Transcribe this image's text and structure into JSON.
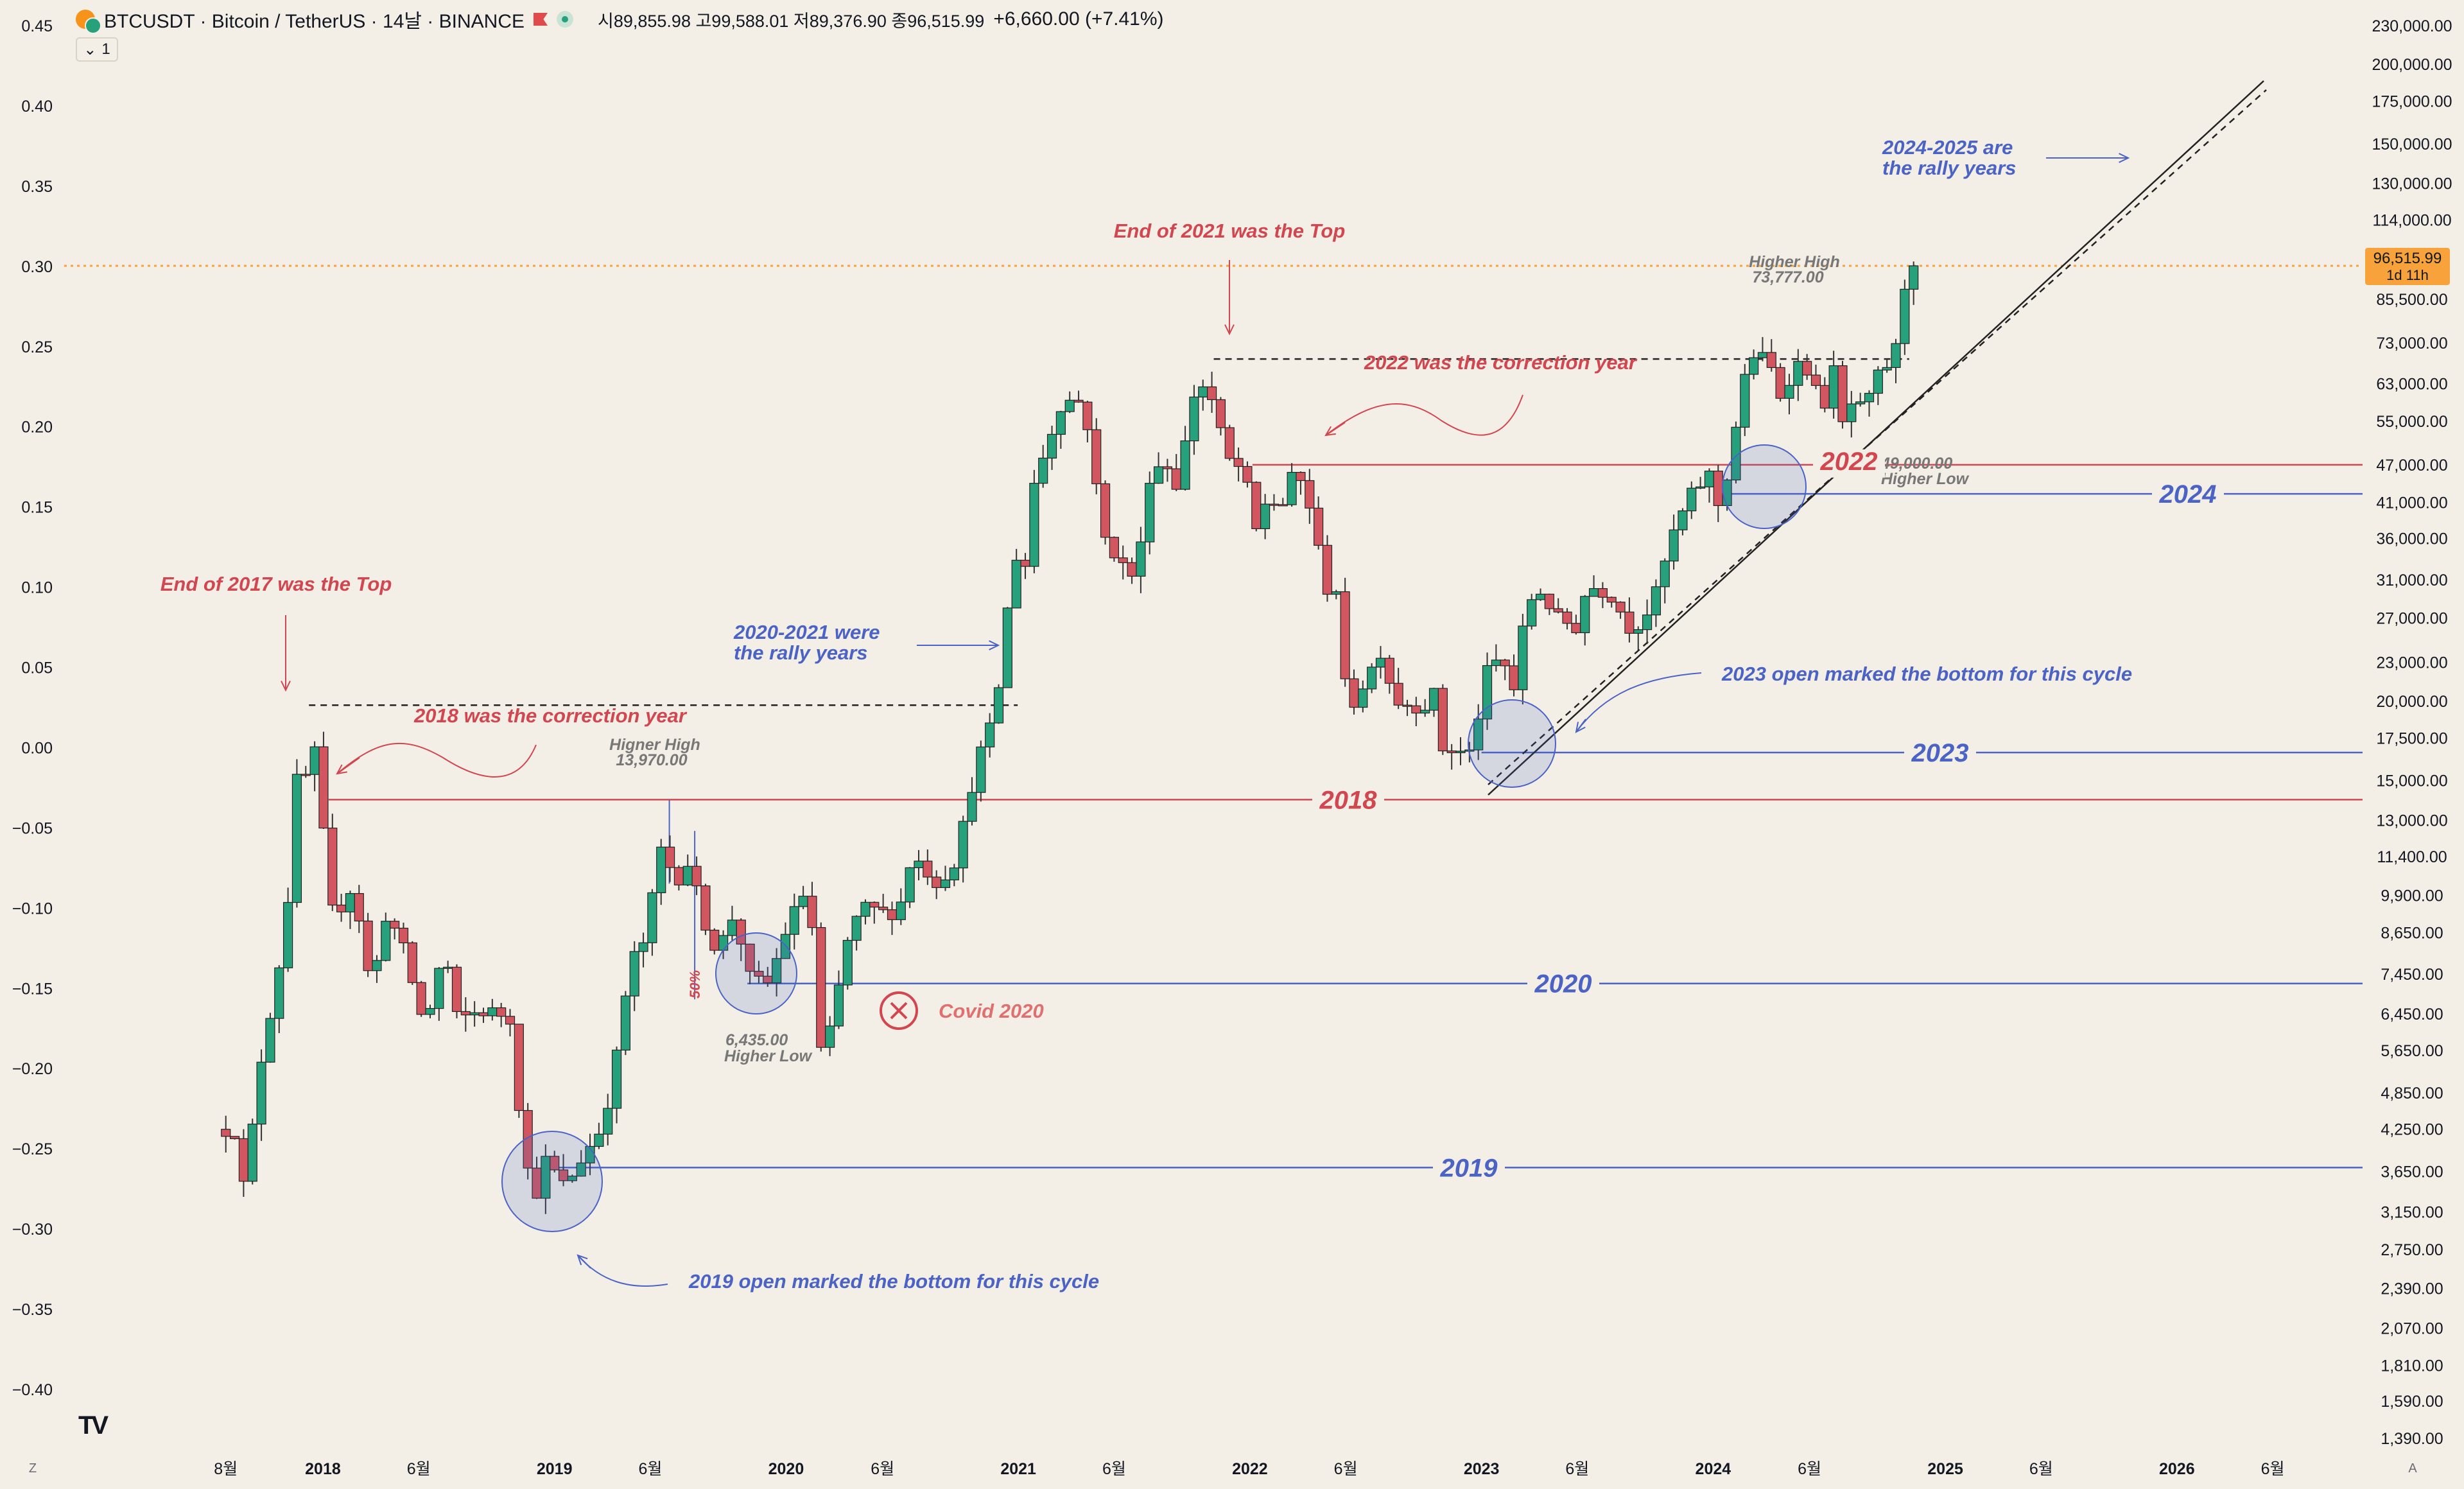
{
  "header": {
    "symbol": "BTCUSDT · Bitcoin / TetherUS · 14날 · BINANCE",
    "ohlc": "시89,855.98  고99,588.01  저89,376.90  종96,515.99",
    "change": "+6,660.00 (+7.41%)",
    "collapse_label": "1"
  },
  "price_badge": {
    "value": "96,515.99",
    "timer": "1d 11h",
    "color": "#f7a23b"
  },
  "left_axis_ticks": [
    "0.45",
    "0.40",
    "0.35",
    "0.30",
    "0.25",
    "0.20",
    "0.15",
    "0.10",
    "0.05",
    "0.00",
    "−0.05",
    "−0.10",
    "−0.15",
    "−0.20",
    "−0.25",
    "−0.30",
    "−0.35",
    "−0.40"
  ],
  "right_axis_ticks": [
    "230,000.00",
    "200,000.00",
    "175,000.00",
    "150,000.00",
    "130,000.00",
    "114,000.00",
    "85,500.00",
    "73,000.00",
    "63,000.00",
    "55,000.00",
    "47,000.00",
    "41,000.00",
    "36,000.00",
    "31,000.00",
    "27,000.00",
    "23,000.00",
    "20,000.00",
    "17,500.00",
    "15,000.00",
    "13,000.00",
    "11,400.00",
    "9,900.00",
    "8,650.00",
    "7,450.00",
    "6,450.00",
    "5,650.00",
    "4,850.00",
    "4,250.00",
    "3,650.00",
    "3,150.00",
    "2,750.00",
    "2,390.00",
    "2,070.00",
    "1,810.00",
    "1,590.00",
    "1,390.00"
  ],
  "time_axis_ticks": [
    "8월",
    "2018",
    "6월",
    "2019",
    "6월",
    "2020",
    "6월",
    "2021",
    "6월",
    "2022",
    "6월",
    "2023",
    "6월",
    "2024",
    "6월",
    "2025",
    "6월",
    "2026",
    "6월"
  ],
  "colors": {
    "up": "#26a17b",
    "down": "#d2565f",
    "red": "#d2464f",
    "blue": "#4a63c5",
    "grey": "#777777",
    "orange": "#f7a23b"
  },
  "annotations": {
    "top2017": "End of 2017 was the Top",
    "corr2018": "2018 was the correction year",
    "hh2019_title": "Higner High",
    "hh2019_value": "13,970.00",
    "pct50": "50%",
    "hl2019_value": "6,435.00",
    "hl2019_title": "Higher Low",
    "rally2020_line1": "2020-2021 were",
    "rally2020_line2": "the rally years",
    "covid": "Covid 2020",
    "bottom2019": "2019 open marked the bottom for this cycle",
    "top2021": "End of 2021 was the Top",
    "corr2022": "2022 was the correction year",
    "hh2024_title": "Higher High",
    "hh2024_value": "73,777.00",
    "hl2024_value": "49,000.00",
    "hl2024_title": "Higher Low",
    "rally2024_line1": "2024-2025 are",
    "rally2024_line2": "the rally years",
    "bottom2023": "2023 open marked the bottom for this cycle",
    "line2018": "2018",
    "line2019": "2019",
    "line2020": "2020",
    "line2022": "2022",
    "line2023": "2023",
    "line2024": "2024"
  },
  "chart_data": {
    "type": "candlestick",
    "interval": "14 days",
    "y_scale": "log",
    "ylim": [
      1390,
      230000
    ],
    "secondary_ylim": [
      -0.4,
      0.45
    ],
    "xlim": [
      "2017-07-10",
      "2026-08-31"
    ],
    "grid": false,
    "last_price": 96515.99,
    "ohlc_last": {
      "open": 89855.98,
      "high": 99588.01,
      "low": 89376.9,
      "close": 96515.99,
      "change": 6660.0,
      "change_pct": 7.41
    },
    "horizontal_levels": [
      {
        "label": "2018",
        "price": 14000
      },
      {
        "label": "2019",
        "price": 3700
      },
      {
        "label": "2020",
        "price": 7200
      },
      {
        "label": "2022",
        "price": 47000
      },
      {
        "label": "2023",
        "price": 16600
      },
      {
        "label": "2024",
        "price": 42300
      }
    ],
    "key_points": [
      {
        "label": "Higner High",
        "price": 13970.0
      },
      {
        "label": "Higher Low",
        "price": 6435.0
      },
      {
        "label": "Higher High",
        "price": 73777.0
      },
      {
        "label": "Higher Low",
        "price": 49000.0
      }
    ],
    "anchors": [
      [
        "2017-08-01",
        4250
      ],
      [
        "2017-09-01",
        4200
      ],
      [
        "2017-09-15",
        3300
      ],
      [
        "2017-10-01",
        4800
      ],
      [
        "2017-10-15",
        5900
      ],
      [
        "2017-11-01",
        7000
      ],
      [
        "2017-11-20",
        9500
      ],
      [
        "2017-12-10",
        17500
      ],
      [
        "2017-12-20",
        15000
      ],
      [
        "2018-01-05",
        17000
      ],
      [
        "2018-01-20",
        11000
      ],
      [
        "2018-02-05",
        8500
      ],
      [
        "2018-02-20",
        10500
      ],
      [
        "2018-03-10",
        9500
      ],
      [
        "2018-04-01",
        7000
      ],
      [
        "2018-04-25",
        9300
      ],
      [
        "2018-05-20",
        8300
      ],
      [
        "2018-06-25",
        6100
      ],
      [
        "2018-07-25",
        8200
      ],
      [
        "2018-08-15",
        6300
      ],
      [
        "2018-09-15",
        6500
      ],
      [
        "2018-10-15",
        6500
      ],
      [
        "2018-11-10",
        6300
      ],
      [
        "2018-11-25",
        4000
      ],
      [
        "2018-12-15",
        3300
      ],
      [
        "2019-01-01",
        3800
      ],
      [
        "2019-02-01",
        3450
      ],
      [
        "2019-03-01",
        3850
      ],
      [
        "2019-04-01",
        4300
      ],
      [
        "2019-04-20",
        5300
      ],
      [
        "2019-05-15",
        7800
      ],
      [
        "2019-06-10",
        8500
      ],
      [
        "2019-06-27",
        11500
      ],
      [
        "2019-07-10",
        12000
      ],
      [
        "2019-07-25",
        9600
      ],
      [
        "2019-08-05",
        11800
      ],
      [
        "2019-08-25",
        10200
      ],
      [
        "2019-09-20",
        8200
      ],
      [
        "2019-10-10",
        8500
      ],
      [
        "2019-10-25",
        9300
      ],
      [
        "2019-11-20",
        7300
      ],
      [
        "2019-12-20",
        7200
      ],
      [
        "2020-01-10",
        8500
      ],
      [
        "2020-02-10",
        10000
      ],
      [
        "2020-02-25",
        8800
      ],
      [
        "2020-03-12",
        5300
      ],
      [
        "2020-04-01",
        6600
      ],
      [
        "2020-04-25",
        8800
      ],
      [
        "2020-05-20",
        9500
      ],
      [
        "2020-06-15",
        9300
      ],
      [
        "2020-07-10",
        9300
      ],
      [
        "2020-08-01",
        11500
      ],
      [
        "2020-09-10",
        10300
      ],
      [
        "2020-10-10",
        11300
      ],
      [
        "2020-10-25",
        13500
      ],
      [
        "2020-11-15",
        16500
      ],
      [
        "2020-12-10",
        19000
      ],
      [
        "2020-12-25",
        26000
      ],
      [
        "2021-01-10",
        34000
      ],
      [
        "2021-01-25",
        32000
      ],
      [
        "2021-02-10",
        45000
      ],
      [
        "2021-03-01",
        50000
      ],
      [
        "2021-03-20",
        58000
      ],
      [
        "2021-04-15",
        60000
      ],
      [
        "2021-05-01",
        57000
      ],
      [
        "2021-05-15",
        45000
      ],
      [
        "2021-06-01",
        36000
      ],
      [
        "2021-06-25",
        33000
      ],
      [
        "2021-07-20",
        31000
      ],
      [
        "2021-08-10",
        45000
      ],
      [
        "2021-09-01",
        48000
      ],
      [
        "2021-09-25",
        43000
      ],
      [
        "2021-10-15",
        60000
      ],
      [
        "2021-11-05",
        63000
      ],
      [
        "2021-11-20",
        58000
      ],
      [
        "2021-12-10",
        48000
      ],
      [
        "2022-01-05",
        46000
      ],
      [
        "2022-01-25",
        37000
      ],
      [
        "2022-02-15",
        43000
      ],
      [
        "2022-03-01",
        39000
      ],
      [
        "2022-03-28",
        46500
      ],
      [
        "2022-04-25",
        39000
      ],
      [
        "2022-05-12",
        30000
      ],
      [
        "2022-06-01",
        30000
      ],
      [
        "2022-06-18",
        19000
      ],
      [
        "2022-07-15",
        21500
      ],
      [
        "2022-08-10",
        24000
      ],
      [
        "2022-09-01",
        20000
      ],
      [
        "2022-10-15",
        19500
      ],
      [
        "2022-11-01",
        20500
      ],
      [
        "2022-11-15",
        16800
      ],
      [
        "2022-12-15",
        16600
      ],
      [
        "2023-01-01",
        16600
      ],
      [
        "2023-01-20",
        22000
      ],
      [
        "2023-02-15",
        23500
      ],
      [
        "2023-03-10",
        20500
      ],
      [
        "2023-03-25",
        28000
      ],
      [
        "2023-04-15",
        30000
      ],
      [
        "2023-05-15",
        27000
      ],
      [
        "2023-06-15",
        26000
      ],
      [
        "2023-07-01",
        30500
      ],
      [
        "2023-08-15",
        29000
      ],
      [
        "2023-09-01",
        26000
      ],
      [
        "2023-09-25",
        26500
      ],
      [
        "2023-10-20",
        30000
      ],
      [
        "2023-11-10",
        36000
      ],
      [
        "2023-12-10",
        42000
      ],
      [
        "2024-01-10",
        45500
      ],
      [
        "2024-01-25",
        40000
      ],
      [
        "2024-02-10",
        47000
      ],
      [
        "2024-03-01",
        62000
      ],
      [
        "2024-03-15",
        70000
      ],
      [
        "2024-04-10",
        69000
      ],
      [
        "2024-05-01",
        60000
      ],
      [
        "2024-05-25",
        68000
      ],
      [
        "2024-06-15",
        66000
      ],
      [
        "2024-07-05",
        57000
      ],
      [
        "2024-07-25",
        67000
      ],
      [
        "2024-08-05",
        54000
      ],
      [
        "2024-08-25",
        60000
      ],
      [
        "2024-09-10",
        56000
      ],
      [
        "2024-09-25",
        64000
      ],
      [
        "2024-10-20",
        68000
      ],
      [
        "2024-11-06",
        75000
      ],
      [
        "2024-11-12",
        89856
      ],
      [
        "2024-11-18",
        96516
      ]
    ]
  }
}
